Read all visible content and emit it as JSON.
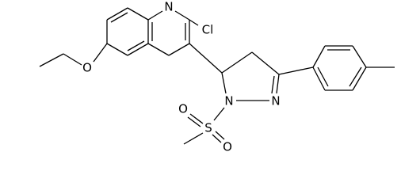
{
  "atoms": [
    {
      "label": "N"
    },
    {
      "label": "Cl"
    },
    {
      "label": "O"
    },
    {
      "label": "N"
    },
    {
      "label": "N"
    },
    {
      "label": "S"
    },
    {
      "label": "O"
    },
    {
      "label": "O"
    }
  ]
}
